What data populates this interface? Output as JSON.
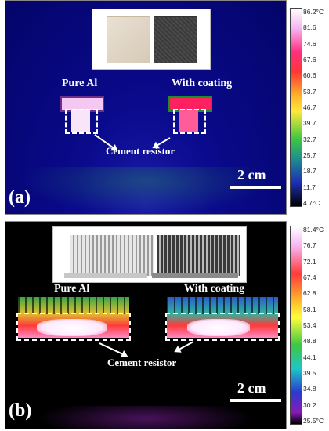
{
  "panel_a": {
    "letter": "(a)",
    "left_label": "Pure Al",
    "right_label": "With coating",
    "resistor_label": "Cement resistor",
    "scale_label": "2 cm",
    "colorbar_ticks": [
      "86.2°C",
      "81.6",
      "74.6",
      "67.6",
      "60.6",
      "53.7",
      "46.7",
      "39.7",
      "32.7",
      "25.7",
      "18.7",
      "11.7",
      "4.7°C"
    ]
  },
  "panel_b": {
    "letter": "(b)",
    "left_label": "Pure Al",
    "right_label": "With coating",
    "resistor_label": "Cement resistor",
    "scale_label": "2 cm",
    "colorbar_ticks": [
      "81.4°C",
      "76.7",
      "72.1",
      "67.4",
      "62.8",
      "58.1",
      "53.4",
      "48.8",
      "44.1",
      "39.5",
      "34.8",
      "30.2",
      "25.5°C"
    ]
  }
}
